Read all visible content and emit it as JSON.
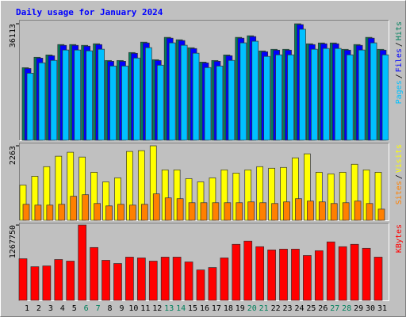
{
  "chart_data": [
    {
      "type": "bar",
      "title": "Daily usage for January 2024",
      "ylim": [
        0,
        36113
      ],
      "yticks": [
        36113
      ],
      "legend_separator": "/",
      "series": [
        {
          "name": "Pages",
          "color": "#00c0ff",
          "values": [
            20800,
            24020,
            24760,
            27980,
            27980,
            27730,
            28220,
            23030,
            23030,
            25500,
            28720,
            23280,
            30200,
            29460,
            26990,
            22540,
            23030,
            24760,
            30200,
            30700,
            26000,
            26490,
            26490,
            34413,
            28220,
            28470,
            28470,
            26490,
            27980,
            30200,
            26490
          ]
        },
        {
          "name": "Files",
          "color": "#0000ff",
          "values": [
            22250,
            25470,
            26210,
            29430,
            29430,
            29180,
            29670,
            24480,
            24480,
            26950,
            30170,
            24730,
            31650,
            30910,
            28440,
            23990,
            24480,
            26210,
            31650,
            32150,
            27450,
            27940,
            27940,
            35860,
            29670,
            29920,
            29920,
            27940,
            29430,
            31650,
            27940
          ]
        },
        {
          "name": "Hits",
          "color": "#00805c",
          "values": [
            22500,
            25720,
            26460,
            29680,
            29680,
            29430,
            29920,
            24730,
            24730,
            27200,
            30420,
            24980,
            31900,
            31160,
            28690,
            24240,
            24730,
            26460,
            31900,
            32400,
            27700,
            28190,
            28190,
            36113,
            29920,
            30170,
            30170,
            28190,
            29680,
            31900,
            28190
          ]
        }
      ]
    },
    {
      "type": "bar",
      "ylim": [
        0,
        2263
      ],
      "yticks": [
        2263
      ],
      "legend_separator": "/",
      "series": [
        {
          "name": "Sites",
          "color": "#ff8000",
          "values": [
            486,
            462,
            462,
            486,
            730,
            778,
            511,
            438,
            486,
            462,
            486,
            803,
            681,
            657,
            535,
            535,
            535,
            535,
            535,
            560,
            535,
            511,
            560,
            657,
            584,
            560,
            511,
            535,
            584,
            511,
            340
          ]
        },
        {
          "name": "Visits",
          "color": "#ffff00",
          "values": [
            1071,
            1338,
            1630,
            1947,
            2068,
            1922,
            1460,
            1168,
            1290,
            2092,
            2117,
            2263,
            1533,
            1533,
            1265,
            1168,
            1290,
            1533,
            1436,
            1533,
            1630,
            1582,
            1606,
            1898,
            2020,
            1460,
            1411,
            1460,
            1703,
            1533,
            1460
          ]
        }
      ]
    },
    {
      "type": "bar",
      "ylim": [
        0,
        1267750
      ],
      "yticks": [
        1267750
      ],
      "categories": [
        "1",
        "2",
        "3",
        "4",
        "5",
        "6",
        "7",
        "8",
        "9",
        "10",
        "11",
        "12",
        "13",
        "14",
        "15",
        "16",
        "17",
        "18",
        "19",
        "20",
        "21",
        "22",
        "23",
        "24",
        "25",
        "26",
        "27",
        "28",
        "29",
        "30",
        "31"
      ],
      "category_colors": [
        "#000000",
        "#000000",
        "#000000",
        "#000000",
        "#000000",
        "#00805c",
        "#00805c",
        "#000000",
        "#000000",
        "#000000",
        "#000000",
        "#000000",
        "#00805c",
        "#00805c",
        "#000000",
        "#000000",
        "#000000",
        "#000000",
        "#000000",
        "#00805c",
        "#00805c",
        "#000000",
        "#000000",
        "#000000",
        "#000000",
        "#000000",
        "#00805c",
        "#00805c",
        "#000000",
        "#000000",
        "#000000"
      ],
      "series": [
        {
          "name": "KBytes",
          "color": "#ff0000",
          "values": [
            701300,
            566450,
            579940,
            687840,
            660860,
            1267750,
            890140,
            674350,
            620400,
            728300,
            714810,
            660860,
            728300,
            728300,
            647380,
            512510,
            552970,
            714810,
            944090,
            998040,
            903630,
            849680,
            863170,
            863170,
            755270,
            836190,
            984550,
            903630,
            944090,
            876660,
            728300
          ]
        }
      ]
    }
  ]
}
